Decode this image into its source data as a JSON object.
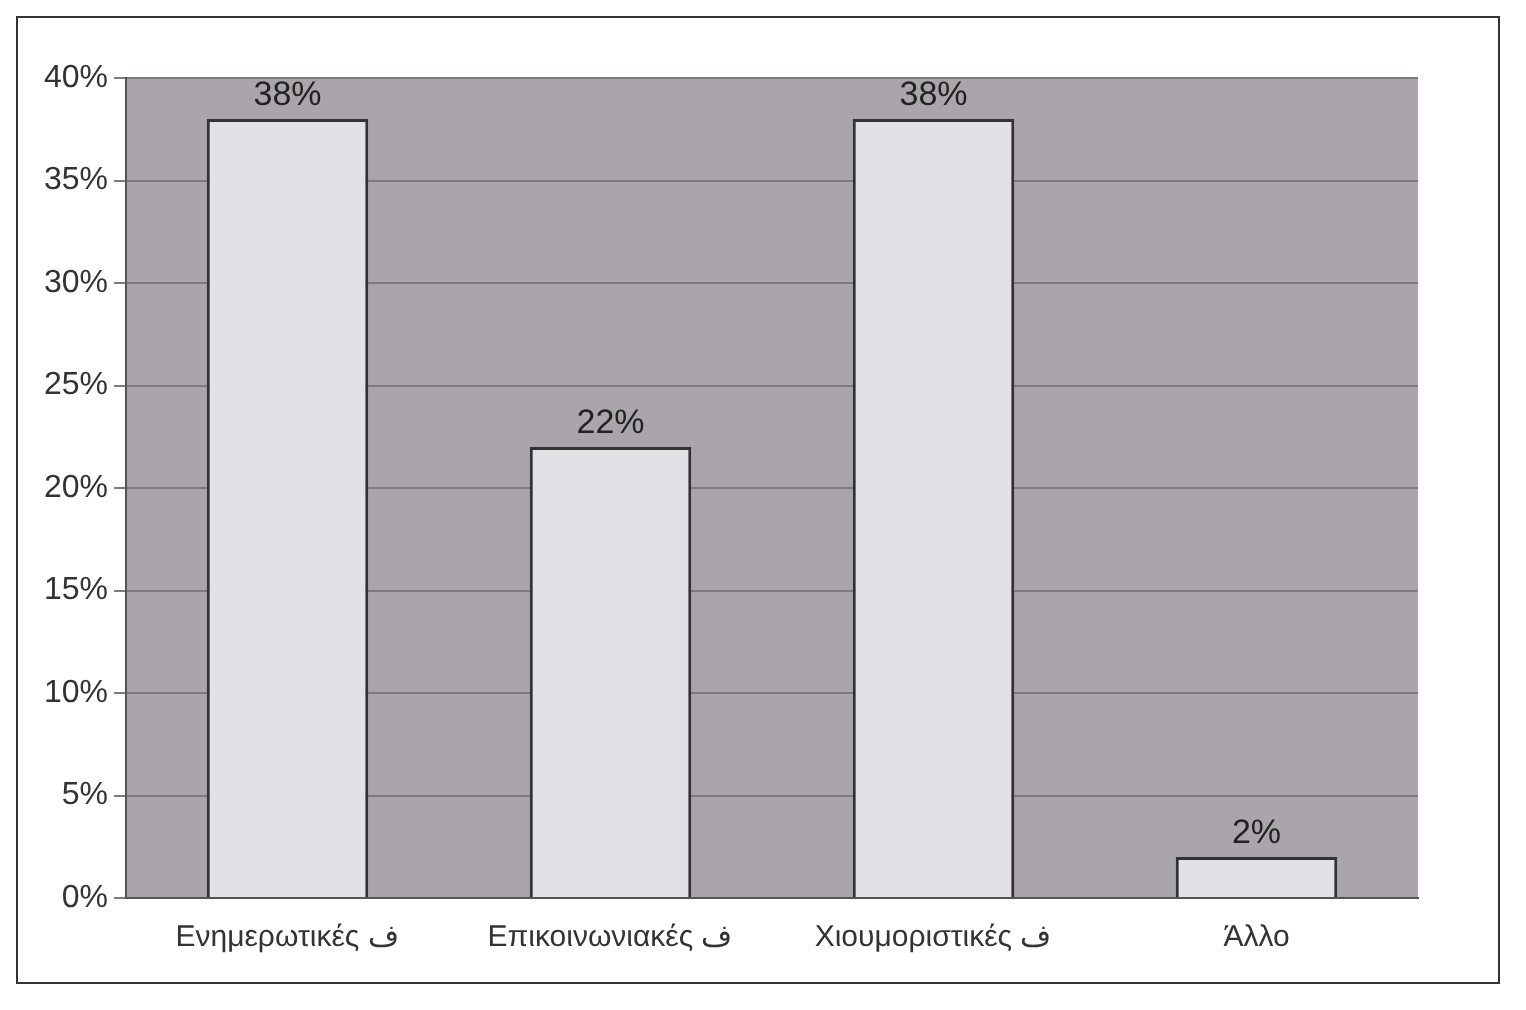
{
  "chart_data": {
    "type": "bar",
    "categories": [
      "Ενημερωτικές ف",
      "Επικοινωνιακές ف",
      "Χιουμοριστικές ف",
      "Άλλο"
    ],
    "values": [
      38,
      22,
      38,
      2
    ],
    "value_labels": [
      "38%",
      "22%",
      "38%",
      "2%"
    ],
    "color": "#e2e2e6",
    "ylim": [
      0,
      40
    ],
    "yticks": [
      {
        "value": 0,
        "label": "0%"
      },
      {
        "value": 5,
        "label": "5%"
      },
      {
        "value": 10,
        "label": "10%"
      },
      {
        "value": 15,
        "label": "15%"
      },
      {
        "value": 20,
        "label": "20%"
      },
      {
        "value": 25,
        "label": "25%"
      },
      {
        "value": 30,
        "label": "30%"
      },
      {
        "value": 35,
        "label": "35%"
      },
      {
        "value": 40,
        "label": "40%"
      }
    ],
    "grid": "y",
    "legend": false
  }
}
